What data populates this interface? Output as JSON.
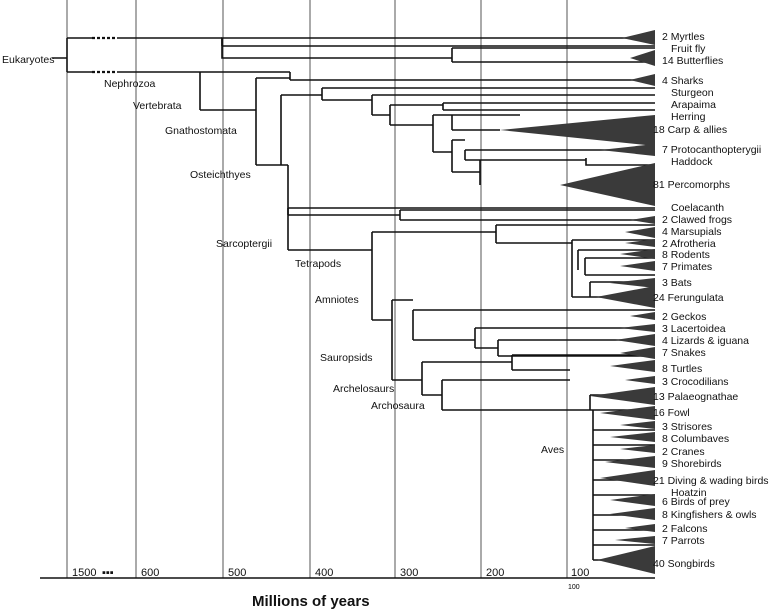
{
  "title": "Millions of years",
  "axis": {
    "ticks": [
      {
        "label": "1500",
        "name": "tick-1500"
      },
      {
        "label": "600",
        "name": "tick-600"
      },
      {
        "label": "500",
        "name": "tick-500"
      },
      {
        "label": "400",
        "name": "tick-400"
      },
      {
        "label": "300",
        "name": "tick-300"
      },
      {
        "label": "200",
        "name": "tick-200"
      },
      {
        "label": "100",
        "name": "tick-100"
      }
    ],
    "small_label": "100"
  },
  "nodes": {
    "eukaryotes": "Eukaryotes",
    "nephrozoa": "Nephrozoa",
    "vertebrata": "Vertebrata",
    "gnathostomata": "Gnathostomata",
    "osteichthyes": "Osteichthyes",
    "sarcoptergii": "Sarcoptergii",
    "tetrapods": "Tetrapods",
    "amniotes": "Amniotes",
    "sauropsids": "Sauropsids",
    "archelosaurs": "Archelosaurs",
    "archosaura": "Archosaura",
    "aves": "Aves"
  },
  "tips": [
    "2 Myrtles",
    "Fruit fly",
    "14 Butterflies",
    "4 Sharks",
    "Sturgeon",
    "Arapaima",
    "Herring",
    "18 Carp & allies",
    "7 Protocanthopterygii",
    "Haddock",
    "81 Percomorphs",
    "Coelacanth",
    "2 Clawed frogs",
    "4 Marsupials",
    "2 Afrotheria",
    "8 Rodents",
    "7 Primates",
    "3 Bats",
    "24 Ferungulata",
    "2 Geckos",
    "3 Lacertoidea",
    "4 Lizards & iguana",
    "7 Snakes",
    "8 Turtles",
    "3 Crocodilians",
    "13 Palaeognathae",
    "16 Fowl",
    "3 Strisores",
    "8 Columbaves",
    "2 Cranes",
    "9 Shorebirds",
    "21 Diving & wading birds",
    "Hoatzin",
    "6 Birds of prey",
    "8 Kingfishers & owls",
    "2 Falcons",
    "7 Parrots",
    "40 Songbirds"
  ],
  "colors": {
    "line": "#111111",
    "triangle": "#3a3a3a",
    "grid": "#555555"
  }
}
